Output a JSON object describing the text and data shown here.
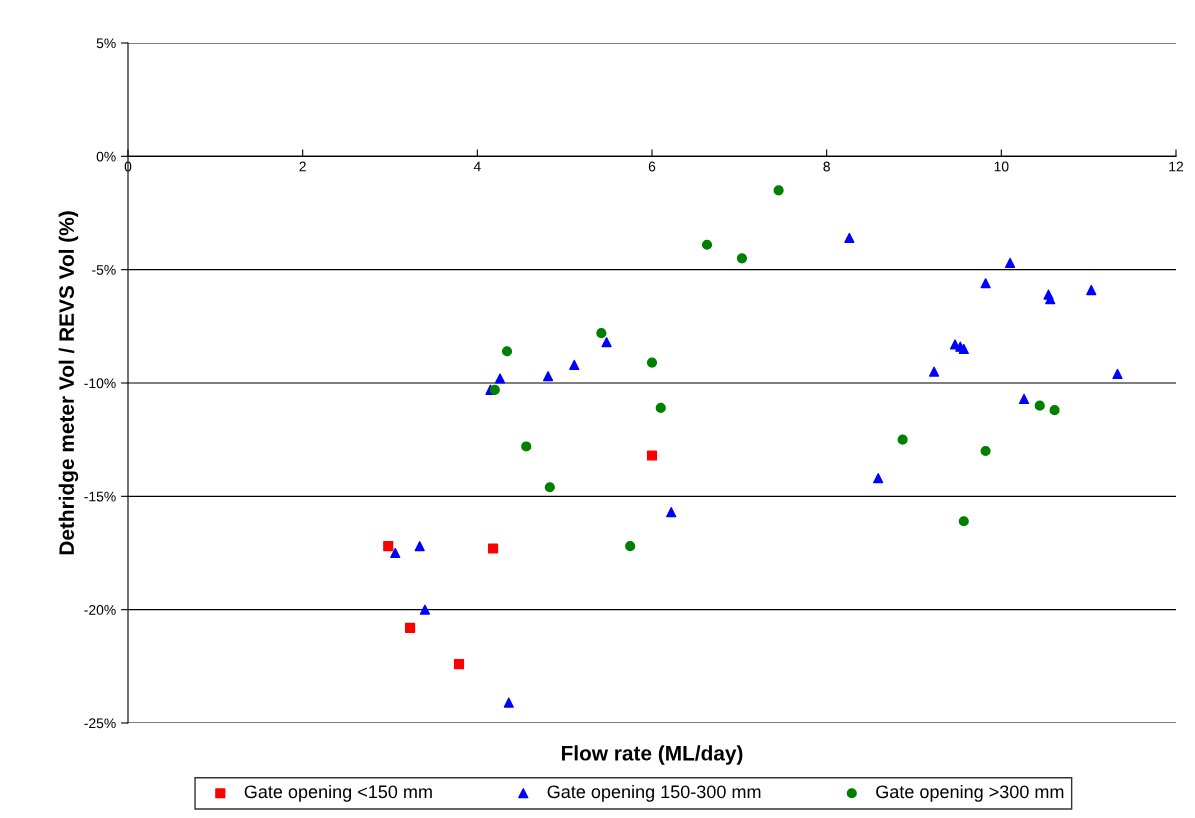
{
  "chart_data": {
    "type": "scatter",
    "xlabel": "Flow rate (ML/day)",
    "ylabel": "Dethridge meter Vol / REVS Vol (%)",
    "xlim": [
      0,
      12
    ],
    "xticks": [
      0,
      2,
      4,
      6,
      8,
      10,
      12
    ],
    "ylim": [
      -25,
      5
    ],
    "yticks": [
      {
        "value": -25,
        "label": "-25%"
      },
      {
        "value": -20,
        "label": "-20%"
      },
      {
        "value": -15,
        "label": "-15%"
      },
      {
        "value": -10,
        "label": "-10%"
      },
      {
        "value": -5,
        "label": "-5%"
      },
      {
        "value": 0,
        "label": "0%"
      },
      {
        "value": 5,
        "label": "5%"
      }
    ],
    "grid": "y",
    "legend": "bottom",
    "series": [
      {
        "name": "Gate opening <150 mm",
        "color": "#ff0000",
        "marker": "square",
        "x": [
          2.98,
          3.23,
          3.79,
          4.18,
          6.0
        ],
        "values": [
          -17.2,
          -20.8,
          -22.4,
          -17.3,
          -13.2
        ]
      },
      {
        "name": "Gate opening 150-300 mm",
        "color": "#0000ff",
        "marker": "triangle",
        "x": [
          3.06,
          3.34,
          3.4,
          4.36,
          4.15,
          4.26,
          4.81,
          5.11,
          5.48,
          6.22,
          8.26,
          8.59,
          9.23,
          9.47,
          9.53,
          9.57,
          9.82,
          10.1,
          10.26,
          10.54,
          10.56,
          11.03,
          11.33
        ],
        "values": [
          -17.5,
          -17.2,
          -20.0,
          -24.1,
          -10.3,
          -9.8,
          -9.7,
          -9.2,
          -8.2,
          -15.7,
          -3.6,
          -14.2,
          -9.5,
          -8.3,
          -8.4,
          -8.5,
          -5.6,
          -4.7,
          -10.7,
          -6.1,
          -6.3,
          -5.9,
          -9.6
        ]
      },
      {
        "name": "Gate opening >300 mm",
        "color": "#008000",
        "marker": "circle",
        "x": [
          4.2,
          4.34,
          4.56,
          4.83,
          5.42,
          5.75,
          6.0,
          6.1,
          6.63,
          7.03,
          7.45,
          8.87,
          9.57,
          9.82,
          10.44,
          10.61
        ],
        "values": [
          -10.3,
          -8.6,
          -12.8,
          -14.6,
          -7.8,
          -17.2,
          -9.1,
          -11.1,
          -3.9,
          -4.5,
          -1.5,
          -12.5,
          -16.1,
          -13.0,
          -11.0,
          -11.2
        ]
      }
    ]
  }
}
